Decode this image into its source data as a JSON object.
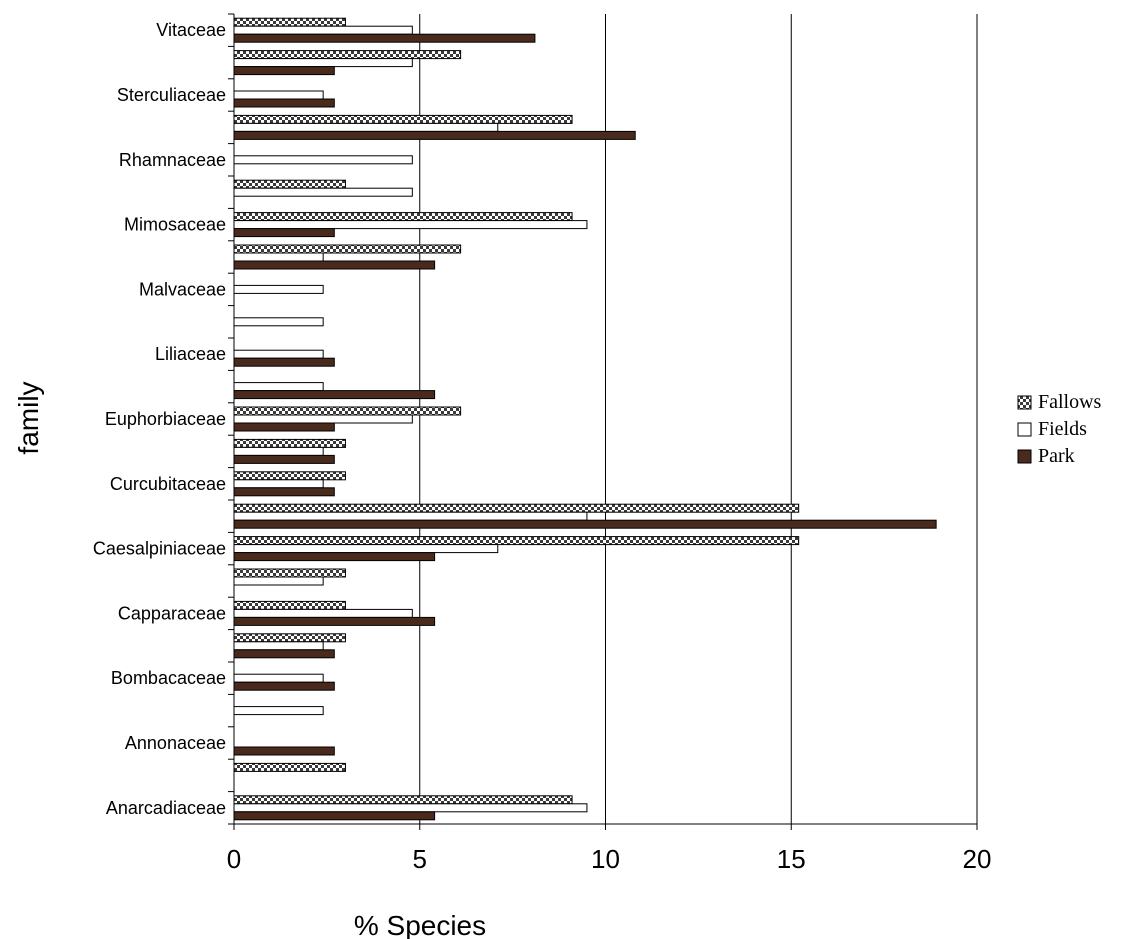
{
  "chart_data": {
    "type": "bar",
    "orientation": "horizontal",
    "xlabel": "% Species",
    "ylabel": "family",
    "xlim": [
      0,
      20
    ],
    "xticks": [
      0,
      5,
      10,
      15,
      20
    ],
    "grid": "vertical",
    "legend_position": "right",
    "categories": [
      "Anarcadiaceae",
      "",
      "Annonaceae",
      "",
      "Bombacaceae",
      "",
      "Capparaceae",
      "",
      "Caesalpiniaceae",
      "",
      "Curcubitaceae",
      "",
      "Euphorbiaceae",
      "",
      "Liliaceae",
      "",
      "Malvaceae",
      "",
      "Mimosaceae",
      "",
      "Rhamnaceae",
      "",
      "Sterculiaceae",
      "",
      "Vitaceae"
    ],
    "series": [
      {
        "name": "Fallows",
        "pattern": "checker",
        "values": [
          9.1,
          3.0,
          0,
          0,
          0,
          3.0,
          3.0,
          3.0,
          15.2,
          15.2,
          3.0,
          3.0,
          6.1,
          0,
          0,
          0,
          0,
          6.1,
          9.1,
          3.0,
          0,
          9.1,
          0,
          6.1,
          3.0
        ]
      },
      {
        "name": "Fields",
        "pattern": "hollow",
        "values": [
          9.5,
          0,
          0,
          2.4,
          2.4,
          2.4,
          4.8,
          2.4,
          7.1,
          9.5,
          2.4,
          2.4,
          4.8,
          2.4,
          2.4,
          2.4,
          2.4,
          2.4,
          9.5,
          4.8,
          4.8,
          7.1,
          2.4,
          4.8,
          4.8
        ]
      },
      {
        "name": "Park",
        "pattern": "solid",
        "values": [
          5.4,
          0,
          2.7,
          0,
          2.7,
          2.7,
          5.4,
          0,
          5.4,
          18.9,
          2.7,
          2.7,
          2.7,
          5.4,
          2.7,
          0,
          0,
          5.4,
          2.7,
          0,
          0,
          10.8,
          2.7,
          2.7,
          8.1
        ]
      }
    ]
  },
  "colors": {
    "park": "#4a2a1c",
    "fields": "#ffffff",
    "fallows_a": "#3a3a3a",
    "fallows_b": "#ffffff",
    "grid": "#000000"
  }
}
